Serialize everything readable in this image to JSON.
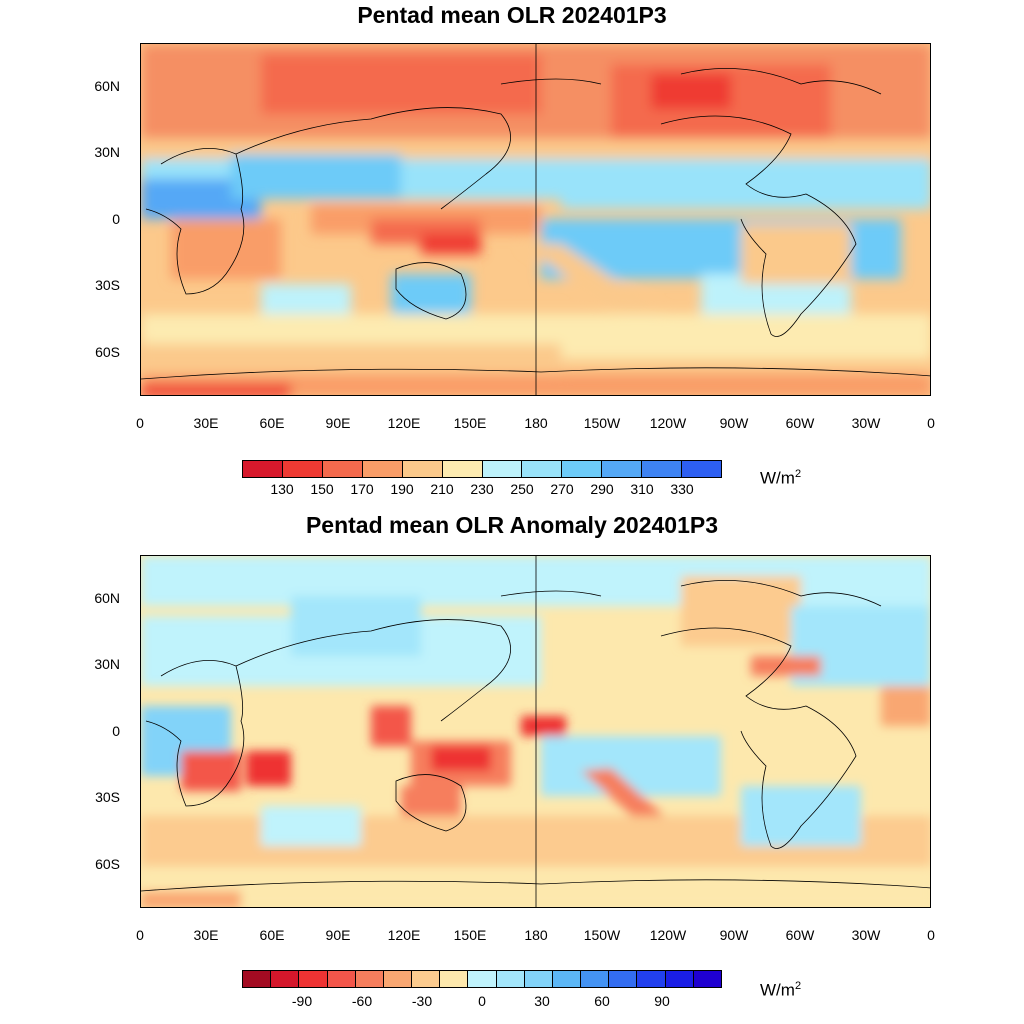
{
  "top": {
    "title": "Pentad mean OLR 202401P3",
    "lat_labels": [
      "60N",
      "30N",
      "0",
      "30S",
      "60S"
    ],
    "lon_labels": [
      "0",
      "30E",
      "60E",
      "90E",
      "120E",
      "150E",
      "180",
      "150W",
      "120W",
      "90W",
      "60W",
      "30W",
      "0"
    ],
    "colorbar": {
      "labels": [
        "130",
        "150",
        "170",
        "190",
        "210",
        "230",
        "250",
        "270",
        "290",
        "310",
        "330"
      ],
      "colors": [
        "#d7192c",
        "#ef3a33",
        "#f46a4d",
        "#f99d68",
        "#fbc98b",
        "#fdebb1",
        "#bdf2fb",
        "#99e3fa",
        "#6dcbf8",
        "#54a8f6",
        "#3e83f3",
        "#2d5ff2"
      ],
      "units": "W/m",
      "units_exp": "2"
    }
  },
  "bottom": {
    "title": "Pentad mean OLR Anomaly 202401P3",
    "lat_labels": [
      "60N",
      "30N",
      "0",
      "30S",
      "60S"
    ],
    "lon_labels": [
      "0",
      "30E",
      "60E",
      "90E",
      "120E",
      "150E",
      "180",
      "150W",
      "120W",
      "90W",
      "60W",
      "30W",
      "0"
    ],
    "colorbar": {
      "labels": [
        "-90",
        "-60",
        "-30",
        "0",
        "30",
        "60",
        "90"
      ],
      "colors": [
        "#a30b22",
        "#d4172b",
        "#ee3333",
        "#f3564a",
        "#f67e5d",
        "#f9a772",
        "#fccb8f",
        "#fde8ad",
        "#c0f3fc",
        "#a3e6fb",
        "#82d3f9",
        "#5cb7f6",
        "#4493f3",
        "#336df1",
        "#2240ef",
        "#1a1ee6",
        "#1f00d1"
      ],
      "units": "W/m",
      "units_exp": "2"
    }
  }
}
